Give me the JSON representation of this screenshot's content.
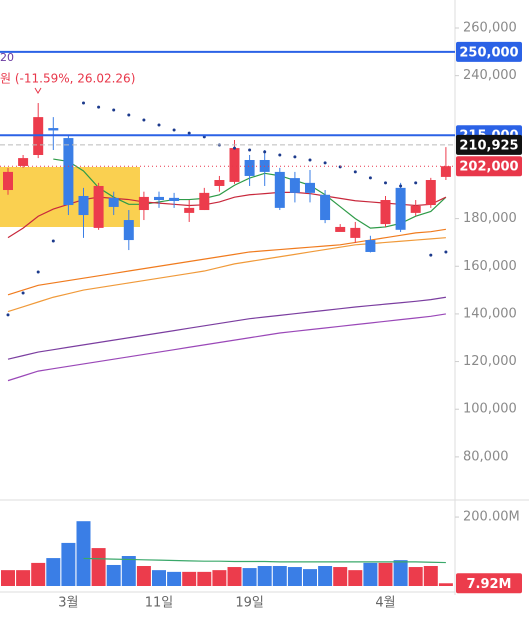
{
  "chart_data": {
    "type": "candlestick",
    "annotations": [
      "20",
      "원 (-11.59%, 26.02.26)"
    ],
    "categories": [
      null,
      null,
      null,
      null,
      "3월",
      null,
      null,
      null,
      null,
      null,
      "11일",
      null,
      null,
      null,
      null,
      null,
      "19일",
      null,
      null,
      null,
      null,
      null,
      null,
      null,
      null,
      "4월",
      null,
      null,
      null,
      null
    ],
    "open": [
      192000,
      202100,
      206700,
      218000,
      213800,
      189500,
      176100,
      188700,
      179400,
      183600,
      189100,
      188700,
      182400,
      183600,
      193700,
      195400,
      204600,
      204600,
      199600,
      197000,
      195000,
      190000,
      174400,
      171900,
      171000,
      177700,
      192900,
      182400,
      185700,
      197500
    ],
    "close": [
      199600,
      205400,
      222600,
      217000,
      185700,
      181500,
      193700,
      184900,
      171000,
      189100,
      187800,
      187400,
      184500,
      190800,
      196200,
      209600,
      197900,
      199600,
      184500,
      190800,
      190800,
      179400,
      176500,
      176100,
      166000,
      187800,
      175300,
      185300,
      196200,
      202000
    ],
    "high": [
      201300,
      206700,
      228500,
      222600,
      215100,
      192900,
      195000,
      191300,
      183600,
      191300,
      191300,
      190800,
      187800,
      192900,
      197900,
      213000,
      206700,
      208800,
      201300,
      199600,
      200400,
      192000,
      177700,
      178600,
      172800,
      189500,
      195000,
      187800,
      197100,
      210000
    ],
    "low": [
      190000,
      201300,
      205400,
      208800,
      181500,
      171900,
      175300,
      181500,
      166800,
      179400,
      184500,
      184500,
      178600,
      183600,
      191300,
      194600,
      193700,
      193700,
      183600,
      186800,
      186800,
      178100,
      175300,
      169800,
      165800,
      176500,
      174400,
      181100,
      184500,
      196200
    ],
    "up_color": "#ec3c4c",
    "down_color": "#3a7ee6",
    "ylim": [
      64000,
      271750
    ],
    "yticks": [
      {
        "value": 80000,
        "label": "80,000"
      },
      {
        "value": 100000,
        "label": "100,000"
      },
      {
        "value": 120000,
        "label": "120,000"
      },
      {
        "value": 140000,
        "label": "140,000"
      },
      {
        "value": 160000,
        "label": "160,000"
      },
      {
        "value": 180000,
        "label": "180,000"
      },
      {
        "value": 240000,
        "label": "240,000"
      },
      {
        "value": 260000,
        "label": "260,000"
      }
    ],
    "lines": [
      {
        "color": "#2e9b48",
        "values": [
          null,
          null,
          null,
          205000,
          204000,
          200000,
          193000,
          189000,
          186000,
          186000,
          187000,
          188000,
          188000,
          188500,
          190000,
          194000,
          197000,
          199000,
          198000,
          196000,
          194000,
          190000,
          185000,
          180000,
          176000,
          176500,
          178000,
          181000,
          183000,
          189000
        ]
      },
      {
        "color": "#c8283c",
        "values": [
          172000,
          176000,
          181000,
          184000,
          186000,
          188000,
          189000,
          188500,
          188000,
          187000,
          186500,
          186000,
          185500,
          185800,
          187000,
          189000,
          190000,
          190500,
          191000,
          191000,
          190500,
          189500,
          188500,
          187500,
          187000,
          186500,
          186000,
          185500,
          186000,
          189000
        ]
      },
      {
        "color": "#f07b1e",
        "values": [
          148000,
          150000,
          152000,
          153000,
          154000,
          155000,
          156000,
          157000,
          158000,
          159000,
          160000,
          161000,
          162000,
          163000,
          164000,
          165000,
          166000,
          166500,
          167000,
          167500,
          168000,
          168500,
          169000,
          170000,
          171000,
          172000,
          173000,
          174000,
          174500,
          175500
        ]
      },
      {
        "color": "#f09a3a",
        "values": [
          141000,
          143000,
          145000,
          147000,
          148500,
          150000,
          151000,
          152000,
          153000,
          154000,
          155000,
          156000,
          157000,
          158000,
          159500,
          161000,
          162000,
          163000,
          164000,
          165000,
          166000,
          167000,
          168000,
          169000,
          169500,
          170000,
          170500,
          171000,
          171500,
          172000
        ]
      },
      {
        "color": "#7b3ea0",
        "values": [
          121000,
          122500,
          124000,
          125000,
          126000,
          127000,
          128000,
          129000,
          130000,
          131000,
          132000,
          133000,
          134000,
          135000,
          136000,
          137000,
          138000,
          138700,
          139400,
          140100,
          140800,
          141500,
          142200,
          142900,
          143500,
          144100,
          144700,
          145300,
          146000,
          147000
        ]
      },
      {
        "color": "#9a48b8",
        "values": [
          112000,
          114000,
          116000,
          117000,
          118000,
          119000,
          120000,
          121000,
          122000,
          123000,
          124000,
          125000,
          126000,
          127000,
          128000,
          129000,
          130000,
          131000,
          132000,
          132700,
          133400,
          134100,
          134800,
          135500,
          136200,
          136900,
          137600,
          138300,
          139000,
          140000
        ]
      }
    ],
    "dots": {
      "color": "#1c3a8c",
      "values": [
        139600,
        148800,
        157600,
        170600,
        null,
        228500,
        226800,
        225600,
        223500,
        221400,
        219300,
        217200,
        215900,
        214300,
        210900,
        209600,
        208800,
        208000,
        206700,
        205900,
        204600,
        203400,
        201700,
        199600,
        197100,
        195000,
        193700,
        195000,
        164700,
        166000
      ]
    },
    "price_lines": [
      {
        "value": 250000,
        "label": "250,000",
        "color": "#2b62e6",
        "style": "solid"
      },
      {
        "value": 215000,
        "label": "215,000",
        "color": "#2b62e6",
        "style": "solid"
      },
      {
        "value": 210925,
        "label": "210,925",
        "color": "#111111",
        "style": "dashed"
      },
      {
        "value": 202000,
        "label": "202,000",
        "color": "#e8374a",
        "style": "dotted"
      }
    ],
    "volume": {
      "values": [
        46,
        46,
        67,
        81,
        125,
        188,
        110,
        61,
        87,
        58,
        46,
        41,
        41,
        41,
        46,
        55,
        52,
        58,
        58,
        55,
        49,
        58,
        55,
        46,
        67,
        67,
        75,
        55,
        58,
        7.92
      ],
      "value_labels": [
        null,
        null,
        null,
        null,
        null,
        null,
        null,
        null,
        null,
        null,
        null,
        null,
        null,
        null,
        null,
        null,
        null,
        null,
        null,
        null,
        null,
        null,
        null,
        null,
        null,
        null,
        null,
        null,
        null,
        "7.92M"
      ],
      "ylim": [
        0,
        235
      ],
      "yticks": [
        {
          "value": 200,
          "label": "200.00M"
        }
      ],
      "ma": {
        "color": "#3aa86a",
        "values": [
          null,
          null,
          null,
          null,
          null,
          80,
          79,
          78,
          77,
          76,
          75,
          74,
          73,
          72,
          72,
          71,
          71,
          71,
          70,
          70,
          70,
          70,
          70,
          70,
          70,
          70,
          70,
          70,
          69,
          68
        ]
      }
    }
  }
}
